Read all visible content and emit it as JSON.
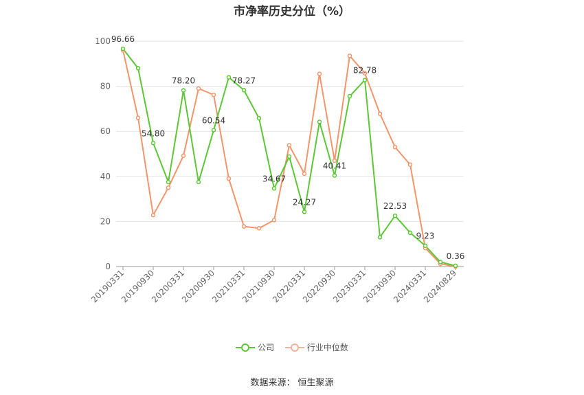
{
  "chart_data": {
    "type": "line",
    "title": "市净率历史分位（%）",
    "ylim": [
      0,
      100
    ],
    "y_ticks": [
      0,
      20,
      40,
      60,
      80,
      100
    ],
    "x_tick_labels": [
      "20190331",
      "20190930",
      "20200331",
      "20200930",
      "20210331",
      "20210930",
      "20220331",
      "20220930",
      "20230331",
      "20230930",
      "20240331",
      "20240829"
    ],
    "x": [
      "20190331",
      "20190630",
      "20190930",
      "20191231",
      "20200331",
      "20200630",
      "20200930",
      "20201231",
      "20210331",
      "20210630",
      "20210930",
      "20211231",
      "20220331",
      "20220630",
      "20220930",
      "20221231",
      "20230331",
      "20230630",
      "20230930",
      "20231231",
      "20240331",
      "20240630",
      "20240829"
    ],
    "series": [
      {
        "name": "公司",
        "color": "#5bc734",
        "values": [
          96.66,
          88.0,
          54.8,
          37.5,
          78.2,
          37.5,
          60.54,
          84.0,
          78.27,
          65.8,
          34.67,
          48.8,
          24.27,
          64.2,
          40.41,
          75.6,
          82.78,
          13.0,
          22.53,
          15.0,
          9.23,
          2.0,
          0.36
        ]
      },
      {
        "name": "行业中位数",
        "color": "#f4946a",
        "values": [
          96.0,
          66.0,
          22.8,
          35.0,
          49.2,
          79.0,
          76.2,
          39.0,
          17.8,
          17.0,
          20.6,
          53.8,
          41.2,
          85.5,
          47.0,
          93.5,
          85.8,
          67.8,
          53.0,
          45.2,
          8.2,
          1.2,
          0.0
        ]
      }
    ],
    "data_labels": [
      {
        "series": 0,
        "index": 0,
        "text": "96.66"
      },
      {
        "series": 0,
        "index": 2,
        "text": "54.80"
      },
      {
        "series": 0,
        "index": 4,
        "text": "78.20"
      },
      {
        "series": 0,
        "index": 6,
        "text": "60.54"
      },
      {
        "series": 0,
        "index": 8,
        "text": "78.27"
      },
      {
        "series": 0,
        "index": 10,
        "text": "34.67"
      },
      {
        "series": 0,
        "index": 12,
        "text": "24.27"
      },
      {
        "series": 0,
        "index": 14,
        "text": "40.41"
      },
      {
        "series": 0,
        "index": 16,
        "text": "82.78"
      },
      {
        "series": 0,
        "index": 18,
        "text": "22.53"
      },
      {
        "series": 0,
        "index": 20,
        "text": "9.23"
      },
      {
        "series": 0,
        "index": 22,
        "text": "0.36"
      }
    ],
    "legend_position": "bottom",
    "grid": true
  },
  "footer": {
    "source_label": "数据来源：",
    "source_value": "恒生聚源"
  }
}
